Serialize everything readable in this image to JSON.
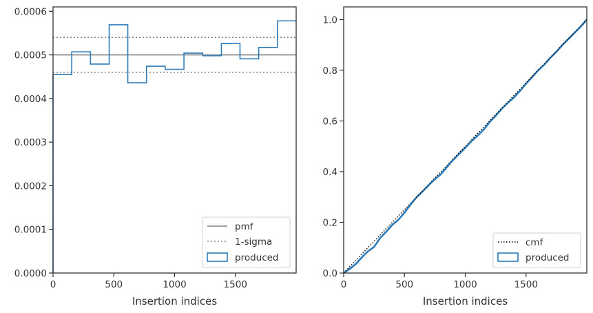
{
  "colors": {
    "produced": "#2b7bba",
    "pmf": "#808080",
    "sigma": "#808080",
    "cmf": "#000000",
    "axes": "#333333"
  },
  "chart_data": [
    {
      "type": "step",
      "xlabel": "Insertion indices",
      "ylabel": "",
      "xlim": [
        0,
        2000
      ],
      "ylim": [
        0,
        0.00061
      ],
      "xticks": [
        0,
        500,
        1000,
        1500
      ],
      "xtick_labels": [
        "0",
        "500",
        "1000",
        "1500"
      ],
      "yticks": [
        0,
        0.0001,
        0.0002,
        0.0003,
        0.0004,
        0.0005,
        0.0006
      ],
      "ytick_labels": [
        "0.0000",
        "0.0001",
        "0.0002",
        "0.0003",
        "0.0004",
        "0.0005",
        "0.0006"
      ],
      "pmf": 0.0005,
      "sigma": [
        0.00046,
        0.00054
      ],
      "bin_edges": [
        0,
        154,
        308,
        462,
        615,
        769,
        923,
        1077,
        1231,
        1385,
        1538,
        1692,
        1846,
        2000
      ],
      "produced": [
        0.000455,
        0.000507,
        0.000479,
        0.000569,
        0.000436,
        0.000474,
        0.000467,
        0.000504,
        0.000498,
        0.000526,
        0.000491,
        0.000517,
        0.000578
      ],
      "legend": {
        "position": "lower-right",
        "entries": [
          "pmf",
          "1-sigma",
          "produced"
        ]
      }
    },
    {
      "type": "line",
      "xlabel": "Insertion indices",
      "ylabel": "",
      "xlim": [
        0,
        2000
      ],
      "ylim": [
        0,
        1.05
      ],
      "xticks": [
        0,
        500,
        1000,
        1500
      ],
      "xtick_labels": [
        "0",
        "500",
        "1000",
        "1500"
      ],
      "yticks": [
        0,
        0.2,
        0.4,
        0.6,
        0.8,
        1.0
      ],
      "ytick_labels": [
        "0.0",
        "0.2",
        "0.4",
        "0.6",
        "0.8",
        "1.0"
      ],
      "cmf": {
        "x": [
          0,
          2000
        ],
        "y": [
          0,
          1
        ]
      },
      "produced": {
        "x": [
          0,
          50,
          100,
          150,
          200,
          250,
          300,
          350,
          400,
          450,
          500,
          550,
          600,
          650,
          700,
          750,
          800,
          850,
          900,
          950,
          1000,
          1050,
          1100,
          1150,
          1200,
          1250,
          1300,
          1350,
          1400,
          1450,
          1500,
          1550,
          1600,
          1650,
          1700,
          1750,
          1800,
          1850,
          1900,
          1950,
          2000
        ],
        "y": [
          0,
          0.016,
          0.036,
          0.062,
          0.086,
          0.103,
          0.138,
          0.163,
          0.19,
          0.21,
          0.238,
          0.27,
          0.299,
          0.322,
          0.347,
          0.37,
          0.39,
          0.418,
          0.446,
          0.47,
          0.494,
          0.52,
          0.541,
          0.565,
          0.595,
          0.62,
          0.648,
          0.671,
          0.692,
          0.718,
          0.747,
          0.773,
          0.8,
          0.822,
          0.849,
          0.873,
          0.9,
          0.924,
          0.948,
          0.972,
          1.0
        ]
      },
      "legend": {
        "position": "lower-right",
        "entries": [
          "cmf",
          "produced"
        ]
      }
    }
  ]
}
